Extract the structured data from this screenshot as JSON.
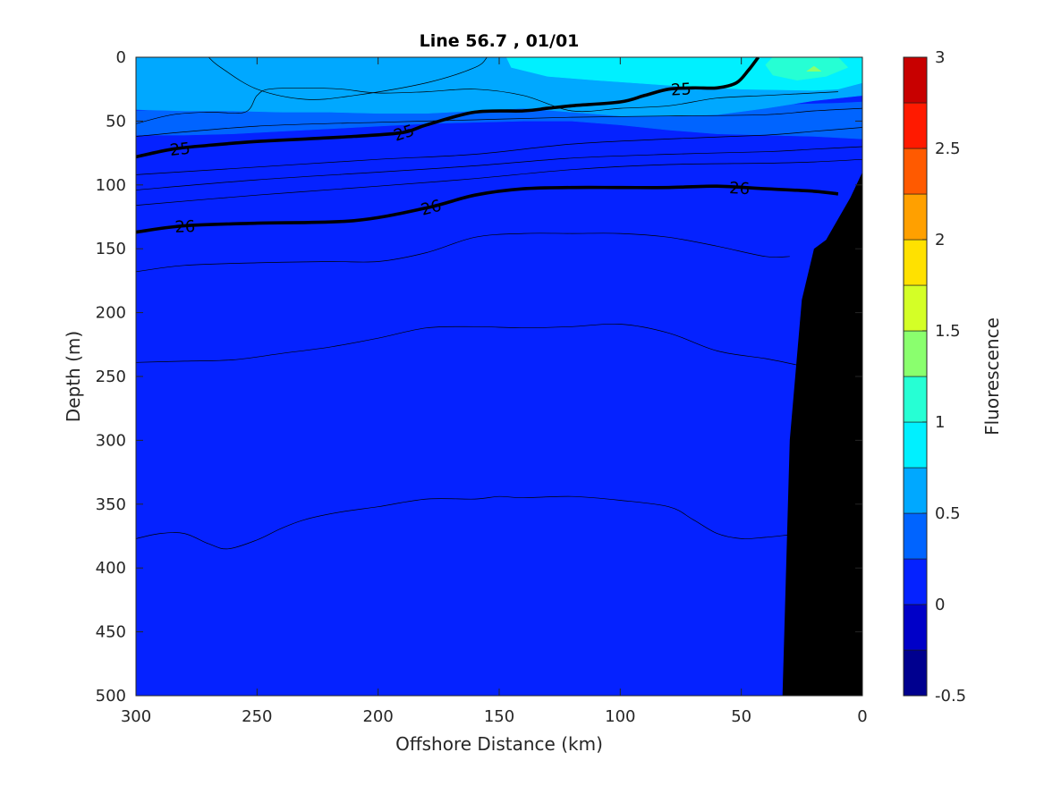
{
  "chart_data": {
    "type": "heatmap",
    "title": "Line 56.7 , 01/01",
    "xlabel": "Offshore Distance (km)",
    "ylabel": "Depth (m)",
    "colorbar_label": "Fluorescence",
    "xlim": [
      300,
      0
    ],
    "ylim": [
      0,
      500
    ],
    "x_reversed": true,
    "y_reversed": true,
    "x_ticks": [
      300,
      250,
      200,
      150,
      100,
      50,
      0
    ],
    "y_ticks": [
      0,
      50,
      100,
      150,
      200,
      250,
      300,
      350,
      400,
      450,
      500
    ],
    "colorbar": {
      "range": [
        -0.5,
        3
      ],
      "ticks": [
        {
          "value": -0.5,
          "label": "-0.5"
        },
        {
          "value": 0,
          "label": "0"
        },
        {
          "value": 0.5,
          "label": "0.5"
        },
        {
          "value": 1,
          "label": "1"
        },
        {
          "value": 1.5,
          "label": "1.5"
        },
        {
          "value": 2,
          "label": "2"
        },
        {
          "value": 2.5,
          "label": "2.5"
        },
        {
          "value": 3,
          "label": "3"
        }
      ],
      "levels": [
        {
          "from": -0.5,
          "to": -0.25,
          "color": "#00008f"
        },
        {
          "from": -0.25,
          "to": 0,
          "color": "#0000c8"
        },
        {
          "from": 0,
          "to": 0.25,
          "color": "#0522ff"
        },
        {
          "from": 0.25,
          "to": 0.5,
          "color": "#0064ff"
        },
        {
          "from": 0.5,
          "to": 0.75,
          "color": "#00a8ff"
        },
        {
          "from": 0.75,
          "to": 1,
          "color": "#00f0ff"
        },
        {
          "from": 1,
          "to": 1.25,
          "color": "#26ffd4"
        },
        {
          "from": 1.25,
          "to": 1.5,
          "color": "#8aff6e"
        },
        {
          "from": 1.5,
          "to": 1.75,
          "color": "#d4ff26"
        },
        {
          "from": 1.75,
          "to": 2,
          "color": "#ffe100"
        },
        {
          "from": 2,
          "to": 2.25,
          "color": "#ffa000"
        },
        {
          "from": 2.25,
          "to": 2.5,
          "color": "#ff5a00"
        },
        {
          "from": 2.5,
          "to": 2.75,
          "color": "#ff1a00"
        },
        {
          "from": 2.75,
          "to": 3,
          "color": "#c80000"
        }
      ]
    },
    "fluorescence_regions": [
      {
        "value_range": [
          0,
          0.25
        ],
        "color": "#0522ff",
        "polygon": [
          [
            300,
            0
          ],
          [
            0,
            0
          ],
          [
            0,
            500
          ],
          [
            300,
            500
          ]
        ]
      },
      {
        "value_range": [
          0.25,
          0.5
        ],
        "color": "#0064ff",
        "polygon": [
          [
            300,
            42
          ],
          [
            280,
            40
          ],
          [
            240,
            38
          ],
          [
            200,
            35
          ],
          [
            160,
            33
          ],
          [
            120,
            34
          ],
          [
            80,
            36
          ],
          [
            50,
            37
          ],
          [
            30,
            37
          ],
          [
            10,
            36
          ],
          [
            0,
            35
          ],
          [
            0,
            64
          ],
          [
            20,
            62
          ],
          [
            40,
            61
          ],
          [
            60,
            60
          ],
          [
            80,
            57
          ],
          [
            100,
            53
          ],
          [
            120,
            50
          ],
          [
            140,
            50
          ],
          [
            160,
            51
          ],
          [
            180,
            52
          ],
          [
            200,
            54
          ],
          [
            220,
            56
          ],
          [
            240,
            58
          ],
          [
            260,
            60
          ],
          [
            280,
            61
          ],
          [
            300,
            61
          ]
        ]
      },
      {
        "value_range": [
          0.5,
          0.75
        ],
        "color": "#00a8ff",
        "polygon": [
          [
            300,
            0
          ],
          [
            0,
            0
          ],
          [
            0,
            30
          ],
          [
            20,
            34
          ],
          [
            40,
            40
          ],
          [
            60,
            45
          ],
          [
            80,
            46
          ],
          [
            100,
            46
          ],
          [
            120,
            43
          ],
          [
            140,
            40
          ],
          [
            160,
            42
          ],
          [
            180,
            44
          ],
          [
            200,
            44
          ],
          [
            220,
            43
          ],
          [
            240,
            43
          ],
          [
            260,
            42
          ],
          [
            280,
            42
          ],
          [
            300,
            41
          ]
        ]
      },
      {
        "value_range": [
          0.75,
          1
        ],
        "color": "#00f0ff",
        "polygon": [
          [
            147,
            0
          ],
          [
            0,
            0
          ],
          [
            0,
            20
          ],
          [
            10,
            25
          ],
          [
            20,
            26
          ],
          [
            50,
            25
          ],
          [
            80,
            22
          ],
          [
            110,
            18
          ],
          [
            130,
            15
          ],
          [
            145,
            8
          ]
        ]
      },
      {
        "value_range": [
          1,
          1.25
        ],
        "color": "#26ffd4",
        "polygon": [
          [
            37,
            0
          ],
          [
            10,
            0
          ],
          [
            6,
            8
          ],
          [
            15,
            15
          ],
          [
            27,
            18
          ],
          [
            37,
            14
          ],
          [
            40,
            6
          ]
        ]
      },
      {
        "value_range": [
          1.25,
          1.5
        ],
        "color": "#8aff6e",
        "polygon": [
          [
            23,
            11
          ],
          [
            20,
            7
          ],
          [
            17,
            11
          ]
        ]
      }
    ],
    "isopycnals": [
      {
        "label": "25",
        "bold": true,
        "x": [
          300,
          285,
          270,
          250,
          230,
          210,
          190,
          180,
          160,
          140,
          130,
          120,
          100,
          90,
          80,
          70,
          60,
          52,
          47,
          43
        ],
        "y": [
          78,
          72,
          69,
          66,
          64,
          62,
          59,
          53,
          43,
          42,
          40,
          38,
          35,
          30,
          25,
          24,
          24,
          20,
          10,
          0
        ]
      },
      {
        "label": "26",
        "bold": true,
        "x": [
          300,
          280,
          250,
          210,
          180,
          160,
          140,
          120,
          100,
          80,
          60,
          40,
          20,
          10
        ],
        "y": [
          137,
          132,
          130,
          128,
          118,
          108,
          103,
          102,
          102,
          102,
          101,
          103,
          105,
          107
        ]
      },
      {
        "label": "",
        "bold": false,
        "x": [
          270,
          265,
          250,
          230,
          210,
          180,
          160,
          155
        ],
        "y": [
          0,
          8,
          25,
          33,
          30,
          20,
          8,
          0
        ]
      },
      {
        "label": "",
        "bold": false,
        "x": [
          300,
          285,
          270,
          255,
          250,
          245,
          230,
          215,
          200,
          180,
          160,
          140,
          120,
          100,
          80,
          60,
          40,
          20,
          10
        ],
        "y": [
          52,
          45,
          43,
          43,
          30,
          25,
          24,
          25,
          28,
          27,
          25,
          30,
          42,
          40,
          38,
          32,
          30,
          28,
          27
        ]
      },
      {
        "label": "",
        "bold": false,
        "x": [
          300,
          250,
          200,
          160,
          120,
          80,
          40,
          20,
          0
        ],
        "y": [
          62,
          54,
          51,
          49,
          47,
          46,
          45,
          42,
          40
        ]
      },
      {
        "label": "",
        "bold": false,
        "x": [
          300,
          250,
          200,
          160,
          120,
          80,
          40,
          20,
          0
        ],
        "y": [
          92,
          86,
          80,
          76,
          68,
          64,
          61,
          58,
          55
        ]
      },
      {
        "label": "",
        "bold": false,
        "x": [
          300,
          250,
          200,
          160,
          120,
          80,
          40,
          20,
          0
        ],
        "y": [
          104,
          96,
          90,
          85,
          79,
          76,
          74,
          72,
          70
        ]
      },
      {
        "label": "",
        "bold": false,
        "x": [
          300,
          250,
          200,
          160,
          120,
          80,
          40,
          20,
          0
        ],
        "y": [
          116,
          108,
          101,
          95,
          88,
          84,
          83,
          82,
          80
        ]
      },
      {
        "label": "",
        "bold": false,
        "x": [
          300,
          280,
          250,
          220,
          200,
          180,
          160,
          140,
          120,
          100,
          80,
          60,
          40,
          30
        ],
        "y": [
          168,
          163,
          161,
          160,
          160,
          153,
          141,
          138,
          138,
          138,
          141,
          148,
          156,
          156
        ]
      },
      {
        "label": "",
        "bold": false,
        "x": [
          300,
          280,
          260,
          240,
          220,
          200,
          180,
          160,
          140,
          120,
          100,
          80,
          60,
          40,
          27
        ],
        "y": [
          239,
          238,
          237,
          232,
          227,
          220,
          212,
          211,
          212,
          211,
          209,
          216,
          230,
          236,
          241
        ]
      },
      {
        "label": "",
        "bold": false,
        "x": [
          300,
          290,
          280,
          270,
          262,
          250,
          240,
          230,
          215,
          200,
          180,
          160,
          150,
          140,
          120,
          100,
          80,
          70,
          60,
          50,
          40,
          30
        ],
        "y": [
          377,
          373,
          373,
          381,
          385,
          378,
          369,
          362,
          356,
          352,
          346,
          346,
          344,
          345,
          344,
          347,
          352,
          362,
          373,
          377,
          376,
          374
        ]
      }
    ],
    "bathymetry": {
      "color": "#000000",
      "polygon": [
        [
          0,
          35
        ],
        [
          0,
          500
        ],
        [
          33,
          500
        ],
        [
          30,
          300
        ],
        [
          25,
          190
        ],
        [
          20,
          150
        ],
        [
          15,
          143
        ],
        [
          5,
          110
        ],
        [
          0,
          90
        ]
      ]
    }
  }
}
